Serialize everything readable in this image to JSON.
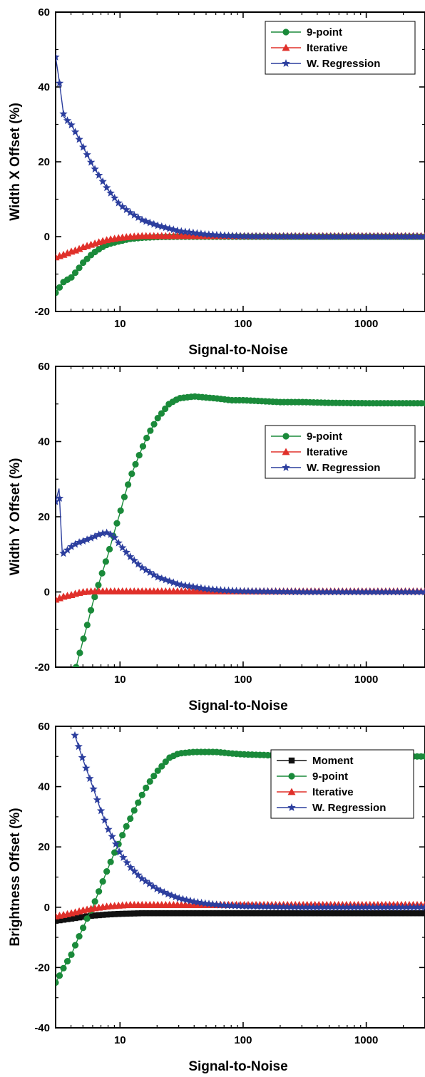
{
  "chart_data": [
    {
      "type": "line",
      "xlabel": "Signal-to-Noise",
      "ylabel": "Width X Offset (%)",
      "xscale": "log",
      "xlim": [
        3,
        3000
      ],
      "ylim": [
        -20,
        60
      ],
      "xticks": [
        10,
        100,
        1000
      ],
      "xtick_labels": [
        "10",
        "100",
        "1000"
      ],
      "yticks": [
        -20,
        0,
        20,
        40,
        60
      ],
      "ytick_labels": [
        "-20",
        "0",
        "20",
        "40",
        "60"
      ],
      "grid": false,
      "legend_position": "top-right",
      "series": [
        {
          "name": "9-point",
          "color": "#1a8a3a",
          "marker": "circle",
          "x": [
            3,
            3.5,
            4,
            4.5,
            5,
            6,
            7,
            8,
            10,
            12,
            15,
            20,
            30,
            50,
            100,
            300,
            1000,
            3000
          ],
          "y": [
            -15,
            -12,
            -11,
            -9,
            -7,
            -4.5,
            -3,
            -2,
            -1.2,
            -0.6,
            -0.3,
            -0.1,
            0,
            0,
            0,
            0,
            0,
            0
          ]
        },
        {
          "name": "Iterative",
          "color": "#e0302a",
          "marker": "triangle",
          "x": [
            3,
            3.5,
            4,
            4.5,
            5,
            6,
            7,
            8,
            10,
            12,
            15,
            20,
            30,
            50,
            100,
            300,
            1000,
            3000
          ],
          "y": [
            -5.5,
            -4.8,
            -4,
            -3.5,
            -2.8,
            -2,
            -1.3,
            -0.8,
            -0.3,
            0,
            0.2,
            0.2,
            0.2,
            0.2,
            0.2,
            0.2,
            0.2,
            0.2
          ]
        },
        {
          "name": "W. Regression",
          "color": "#2c3e9e",
          "marker": "star",
          "x": [
            3,
            3.2,
            3.5,
            4,
            4.5,
            5,
            6,
            7,
            8,
            10,
            12,
            15,
            20,
            30,
            50,
            70,
            100,
            300,
            1000,
            3000
          ],
          "y": [
            48,
            42,
            32,
            30,
            27,
            24,
            19,
            15.5,
            12.5,
            8.5,
            6.5,
            4.5,
            3,
            1.5,
            0.6,
            0.3,
            0.1,
            0,
            0,
            0
          ]
        }
      ]
    },
    {
      "type": "line",
      "xlabel": "Signal-to-Noise",
      "ylabel": "Width Y Offset (%)",
      "xscale": "log",
      "xlim": [
        3,
        3000
      ],
      "ylim": [
        -20,
        60
      ],
      "xticks": [
        10,
        100,
        1000
      ],
      "xtick_labels": [
        "10",
        "100",
        "1000"
      ],
      "yticks": [
        -20,
        0,
        20,
        40,
        60
      ],
      "ytick_labels": [
        "-20",
        "0",
        "20",
        "40",
        "60"
      ],
      "grid": false,
      "legend_position": "middle-right",
      "series": [
        {
          "name": "9-point",
          "color": "#1a8a3a",
          "marker": "circle",
          "x": [
            4.4,
            5,
            5.5,
            6,
            7,
            8,
            9,
            10,
            11,
            12,
            13,
            15,
            17,
            20,
            25,
            30,
            40,
            50,
            60,
            80,
            100,
            200,
            300,
            500,
            1000,
            2000,
            3000
          ],
          "y": [
            -20,
            -13,
            -8,
            -3,
            4,
            10,
            16,
            21,
            26,
            30,
            33,
            38,
            42,
            46,
            50,
            51.5,
            52,
            51.7,
            51.5,
            51,
            51,
            50.5,
            50.5,
            50.3,
            50.2,
            50.2,
            50.2
          ]
        },
        {
          "name": "Iterative",
          "color": "#e0302a",
          "marker": "triangle",
          "x": [
            3,
            3.5,
            4,
            4.5,
            5,
            6,
            8,
            10,
            20,
            50,
            100,
            300,
            1000,
            3000
          ],
          "y": [
            -2,
            -1.2,
            -0.8,
            -0.3,
            0,
            0.2,
            0.2,
            0.2,
            0.2,
            0.2,
            0.2,
            0.2,
            0.2,
            0.2
          ]
        },
        {
          "name": "W. Regression",
          "color": "#2c3e9e",
          "marker": "star",
          "x": [
            3,
            3.2,
            3.4,
            3.7,
            4,
            4.5,
            5,
            6,
            7,
            8,
            9,
            10,
            12,
            15,
            20,
            30,
            50,
            70,
            100,
            300,
            1000,
            3000
          ],
          "y": [
            24,
            27.5,
            10,
            11,
            12,
            13,
            13.5,
            14.5,
            15.5,
            15.8,
            14.5,
            12.5,
            9.5,
            6.5,
            4,
            2,
            0.8,
            0.4,
            0.2,
            0,
            0,
            0
          ]
        }
      ]
    },
    {
      "type": "line",
      "xlabel": "Signal-to-Noise",
      "ylabel": "Brightness Offset (%)",
      "xscale": "log",
      "xlim": [
        3,
        3000
      ],
      "ylim": [
        -40,
        60
      ],
      "xticks": [
        10,
        100,
        1000
      ],
      "xtick_labels": [
        "10",
        "100",
        "1000"
      ],
      "yticks": [
        -40,
        -20,
        0,
        20,
        40,
        60
      ],
      "ytick_labels": [
        "-40",
        "-20",
        "0",
        "20",
        "40",
        "60"
      ],
      "grid": false,
      "legend_position": "upper-right",
      "series": [
        {
          "name": "Moment",
          "color": "#111111",
          "marker": "square",
          "x": [
            3,
            4,
            5,
            6,
            8,
            10,
            15,
            20,
            50,
            100,
            300,
            1000,
            3000
          ],
          "y": [
            -4.5,
            -3.8,
            -3.2,
            -2.8,
            -2.4,
            -2.2,
            -2,
            -2,
            -2,
            -2,
            -2,
            -2,
            -2
          ]
        },
        {
          "name": "9-point",
          "color": "#1a8a3a",
          "marker": "circle",
          "x": [
            3,
            3.3,
            3.6,
            4,
            4.5,
            5,
            5.5,
            6,
            7,
            8,
            9,
            10,
            11,
            12,
            13,
            15,
            17,
            20,
            25,
            30,
            40,
            50,
            60,
            80,
            100,
            200,
            300,
            500,
            1000,
            2000,
            3000
          ],
          "y": [
            -25,
            -22,
            -19,
            -16,
            -11,
            -7,
            -3,
            0,
            7,
            13,
            18,
            22,
            26,
            29,
            32,
            37,
            41,
            45,
            49.5,
            51,
            51.5,
            51.5,
            51.5,
            51,
            50.7,
            50.3,
            50.2,
            50.1,
            50,
            50,
            50
          ]
        },
        {
          "name": "Iterative",
          "color": "#e0302a",
          "marker": "triangle",
          "x": [
            3,
            3.5,
            4,
            4.5,
            5,
            6,
            7,
            8,
            10,
            12,
            15,
            20,
            30,
            50,
            100,
            300,
            1000,
            3000
          ],
          "y": [
            -3,
            -2.5,
            -2,
            -1.5,
            -1,
            -0.4,
            0,
            0.3,
            0.6,
            0.8,
            0.8,
            0.8,
            0.8,
            0.8,
            0.8,
            0.8,
            0.8,
            0.8
          ]
        },
        {
          "name": "W. Regression",
          "color": "#2c3e9e",
          "marker": "star",
          "x": [
            4.3,
            5,
            6,
            7,
            8,
            9,
            10,
            12,
            15,
            20,
            25,
            30,
            40,
            50,
            70,
            100,
            200,
            300,
            1000,
            3000
          ],
          "y": [
            57,
            49,
            40,
            32,
            26,
            22,
            18,
            13.5,
            9.5,
            6,
            4.2,
            3,
            1.8,
            1.2,
            0.6,
            0.3,
            0.1,
            0,
            0,
            0
          ]
        }
      ]
    }
  ]
}
